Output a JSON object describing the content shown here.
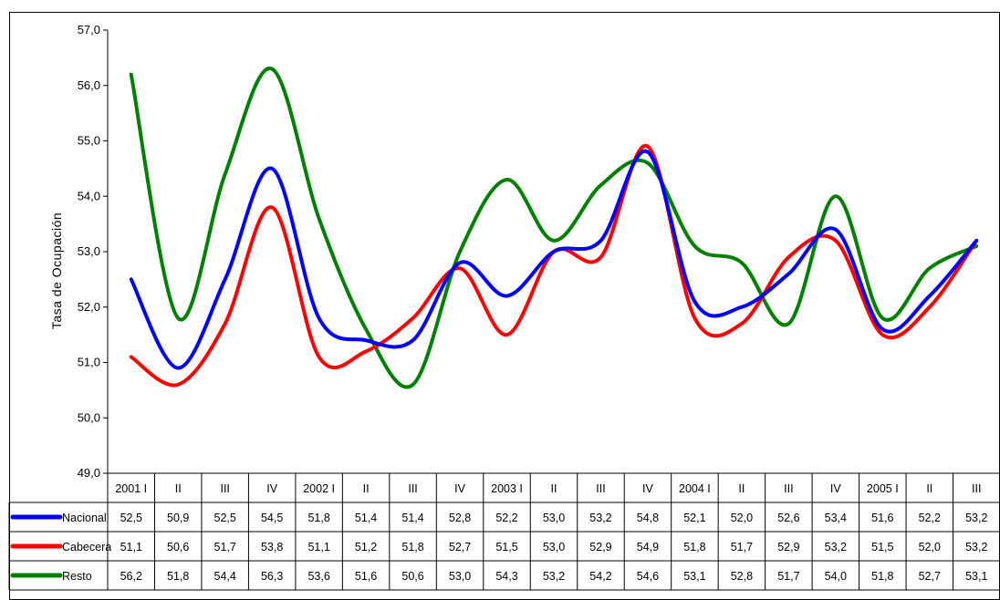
{
  "chart_data": {
    "type": "line",
    "ylabel": "Tasa de Ocupación",
    "ylim": [
      49.0,
      57.0
    ],
    "yticks": [
      "49,0",
      "50,0",
      "51,0",
      "52,0",
      "53,0",
      "54,0",
      "55,0",
      "56,0",
      "57,0"
    ],
    "categories": [
      "2001 I",
      "II",
      "III",
      "IV",
      "2002 I",
      "II",
      "III",
      "IV",
      "2003 I",
      "II",
      "III",
      "IV",
      "2004 I",
      "II",
      "III",
      "IV",
      "2005 I",
      "II",
      "III"
    ],
    "series": [
      {
        "name": "Nacional",
        "color": "#0000ff",
        "values": [
          52.5,
          50.9,
          52.5,
          54.5,
          51.8,
          51.4,
          51.4,
          52.8,
          52.2,
          53.0,
          53.2,
          54.8,
          52.1,
          52.0,
          52.6,
          53.4,
          51.6,
          52.2,
          53.2
        ],
        "labels": [
          "52,5",
          "50,9",
          "52,5",
          "54,5",
          "51,8",
          "51,4",
          "51,4",
          "52,8",
          "52,2",
          "53,0",
          "53,2",
          "54,8",
          "52,1",
          "52,0",
          "52,6",
          "53,4",
          "51,6",
          "52,2",
          "53,2"
        ]
      },
      {
        "name": "Cabecera",
        "color": "#ff0000",
        "values": [
          51.1,
          50.6,
          51.7,
          53.8,
          51.1,
          51.2,
          51.8,
          52.7,
          51.5,
          53.0,
          52.9,
          54.9,
          51.8,
          51.7,
          52.9,
          53.2,
          51.5,
          52.0,
          53.2
        ],
        "labels": [
          "51,1",
          "50,6",
          "51,7",
          "53,8",
          "51,1",
          "51,2",
          "51,8",
          "52,7",
          "51,5",
          "53,0",
          "52,9",
          "54,9",
          "51,8",
          "51,7",
          "52,9",
          "53,2",
          "51,5",
          "52,0",
          "53,2"
        ]
      },
      {
        "name": "Resto",
        "color": "#008000",
        "values": [
          56.2,
          51.8,
          54.4,
          56.3,
          53.6,
          51.6,
          50.6,
          53.0,
          54.3,
          53.2,
          54.2,
          54.6,
          53.1,
          52.8,
          51.7,
          54.0,
          51.8,
          52.7,
          53.1
        ],
        "labels": [
          "56,2",
          "51,8",
          "54,4",
          "56,3",
          "53,6",
          "51,6",
          "50,6",
          "53,0",
          "54,3",
          "53,2",
          "54,2",
          "54,6",
          "53,1",
          "52,8",
          "51,7",
          "54,0",
          "51,8",
          "52,7",
          "53,1"
        ]
      }
    ],
    "legend": "table-left",
    "grid": false
  }
}
